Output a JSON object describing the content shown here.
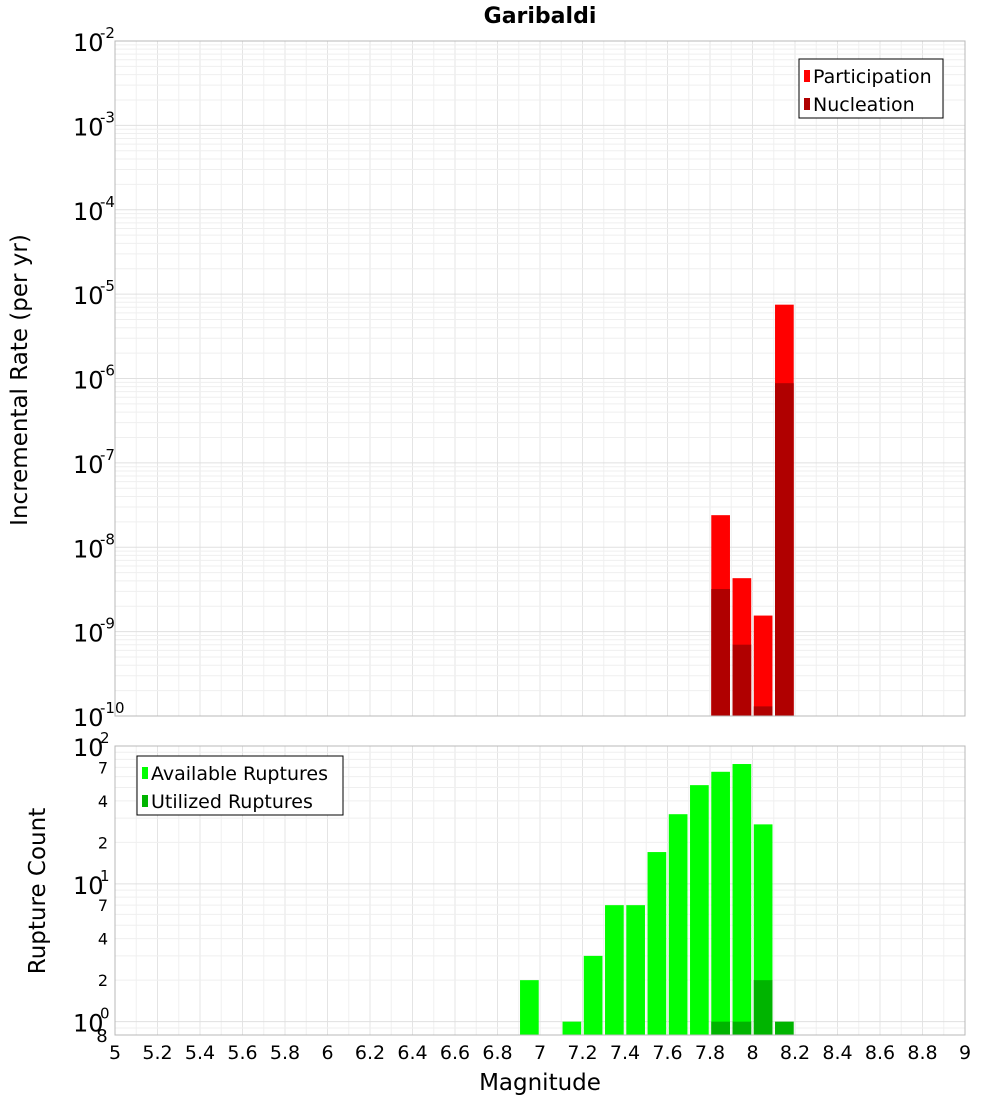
{
  "chart_data": [
    {
      "type": "bar",
      "title": "Garibaldi",
      "xlabel": "Magnitude",
      "ylabel": "Incremental Rate (per yr)",
      "yscale": "log",
      "ylim": [
        1e-10,
        0.01
      ],
      "xlim": [
        5,
        9
      ],
      "grid": true,
      "legend_position": "top-right",
      "y_ticks": [
        {
          "label": "10",
          "exp": "-10"
        },
        {
          "label": "10",
          "exp": "-9"
        },
        {
          "label": "10",
          "exp": "-8"
        },
        {
          "label": "10",
          "exp": "-7"
        },
        {
          "label": "10",
          "exp": "-6"
        },
        {
          "label": "10",
          "exp": "-5"
        },
        {
          "label": "10",
          "exp": "-4"
        },
        {
          "label": "10",
          "exp": "-3"
        },
        {
          "label": "10",
          "exp": "-2"
        }
      ],
      "series": [
        {
          "name": "Participation",
          "color": "#ff0000",
          "x": [
            7.85,
            7.95,
            8.05,
            8.15
          ],
          "values": [
            2.4e-08,
            4.3e-09,
            1.55e-09,
            7.5e-06
          ]
        },
        {
          "name": "Nucleation",
          "color": "#b00000",
          "x": [
            7.85,
            7.95,
            8.05,
            8.15
          ],
          "values": [
            3.2e-09,
            7e-10,
            1.3e-10,
            8.8e-07
          ]
        }
      ]
    },
    {
      "type": "bar",
      "xlabel": "Magnitude",
      "ylabel": "Rupture Count",
      "yscale": "log",
      "ylim": [
        0.8,
        100
      ],
      "xlim": [
        5,
        9
      ],
      "grid": true,
      "legend_position": "top-left",
      "x_ticks": [
        "5",
        "5.2",
        "5.4",
        "5.6",
        "5.8",
        "6",
        "6.2",
        "6.4",
        "6.6",
        "6.8",
        "7",
        "7.2",
        "7.4",
        "7.6",
        "7.8",
        "8",
        "8.2",
        "8.4",
        "8.6",
        "8.8",
        "9"
      ],
      "y_ticks": [
        {
          "label": "10",
          "exp": "0",
          "kind": "major"
        },
        {
          "label": "2",
          "kind": "minor"
        },
        {
          "label": "4",
          "kind": "minor"
        },
        {
          "label": "7",
          "kind": "minor"
        },
        {
          "label": "10",
          "exp": "1",
          "kind": "major"
        },
        {
          "label": "2",
          "kind": "minor"
        },
        {
          "label": "4",
          "kind": "minor"
        },
        {
          "label": "7",
          "kind": "minor"
        },
        {
          "label": "10",
          "exp": "2",
          "kind": "major"
        }
      ],
      "y_min_label": "8",
      "series": [
        {
          "name": "Available Ruptures",
          "color": "#00ff00",
          "x": [
            6.95,
            7.15,
            7.25,
            7.35,
            7.45,
            7.55,
            7.65,
            7.75,
            7.85,
            7.95,
            8.05
          ],
          "values": [
            2,
            1,
            3,
            7,
            7,
            17,
            32,
            52,
            65,
            74,
            27
          ]
        },
        {
          "name": "Utilized Ruptures",
          "color": "#00b400",
          "x": [
            7.85,
            7.95,
            8.05,
            8.15
          ],
          "values": [
            1,
            1,
            2,
            1
          ]
        }
      ]
    }
  ]
}
